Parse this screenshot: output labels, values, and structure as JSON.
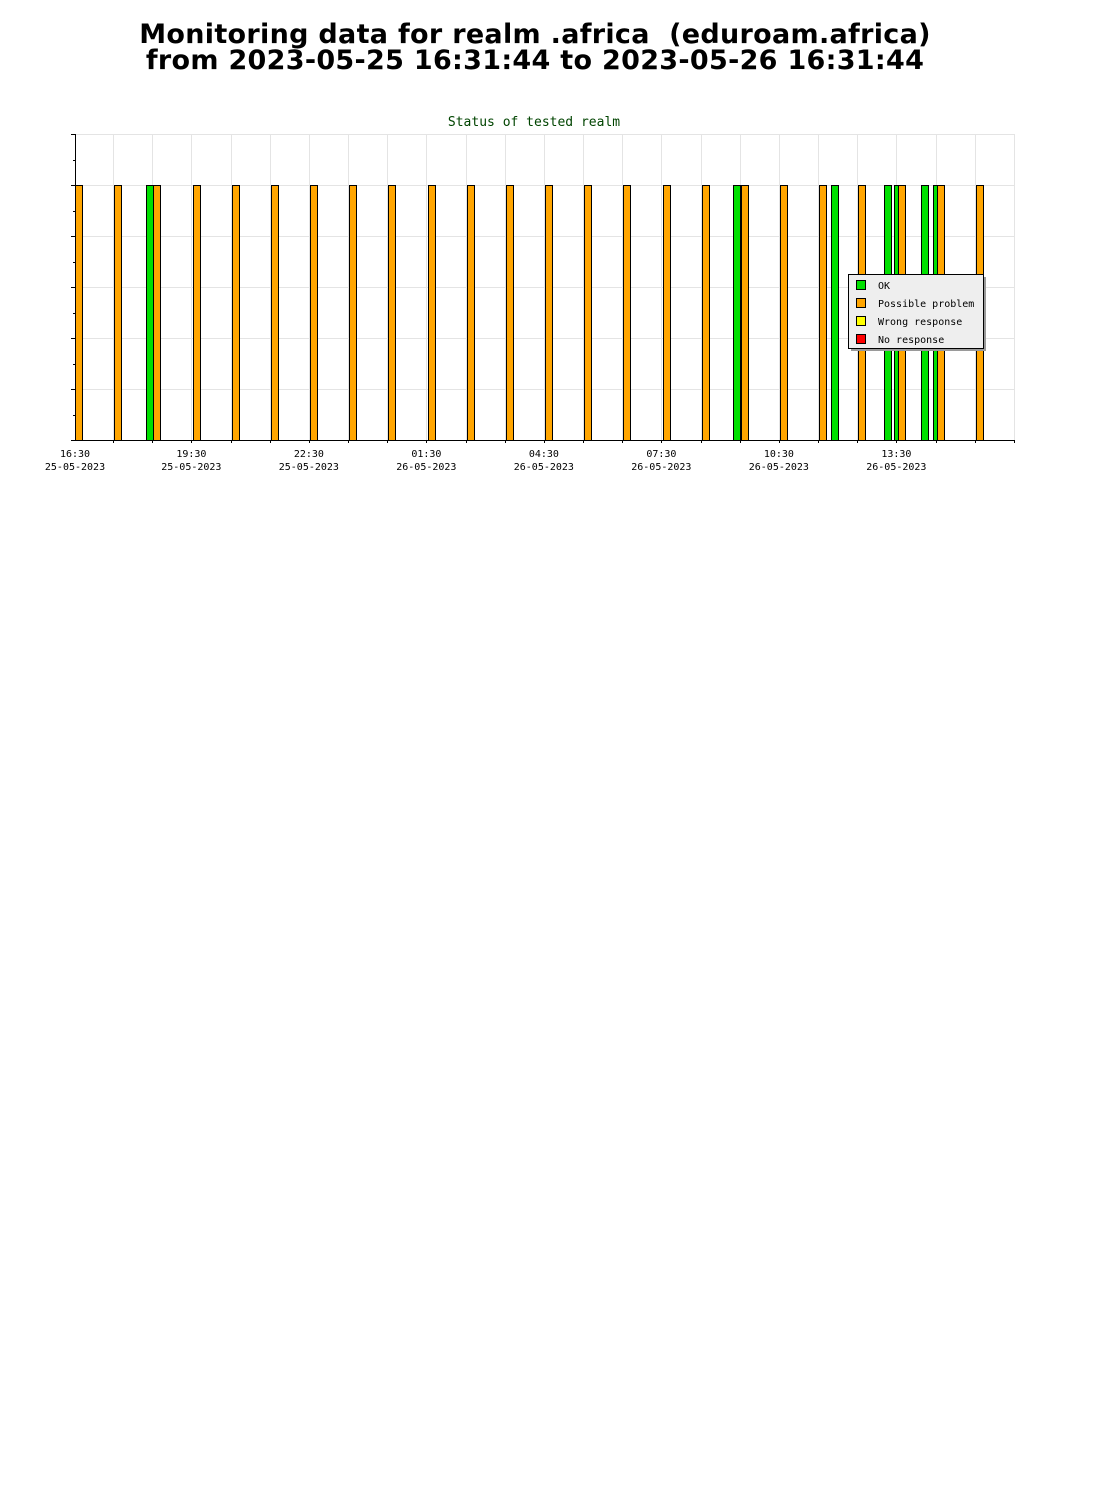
{
  "header": {
    "line1": "Monitoring data for realm .africa  (eduroam.africa)",
    "line2": "from 2023-05-25 16:31:44 to 2023-05-26 16:31:44"
  },
  "chart_data": {
    "type": "bar",
    "title": "Status of tested realm",
    "xlabel": "",
    "ylabel": "",
    "x_range": [
      "2023-05-25 16:31:44",
      "2023-05-26 16:31:44"
    ],
    "x_ticks": [
      {
        "time": "16:30",
        "date": "25-05-2023"
      },
      {
        "time": "19:30",
        "date": "25-05-2023"
      },
      {
        "time": "22:30",
        "date": "25-05-2023"
      },
      {
        "time": "01:30",
        "date": "26-05-2023"
      },
      {
        "time": "04:30",
        "date": "26-05-2023"
      },
      {
        "time": "07:30",
        "date": "26-05-2023"
      },
      {
        "time": "10:30",
        "date": "26-05-2023"
      },
      {
        "time": "13:30",
        "date": "26-05-2023"
      }
    ],
    "ylim": [
      0,
      1.2
    ],
    "grid": true,
    "legend_position": "right",
    "series": [
      {
        "name": "OK",
        "color": "#00e000"
      },
      {
        "name": "Possible problem",
        "color": "#ffa500"
      },
      {
        "name": "Wrong response",
        "color": "#ffff00"
      },
      {
        "name": "No response",
        "color": "#ff0000"
      }
    ],
    "points": [
      {
        "time": "2023-05-25 16:31",
        "status": "Possible problem",
        "value": 1
      },
      {
        "time": "2023-05-25 17:31",
        "status": "Possible problem",
        "value": 1
      },
      {
        "time": "2023-05-25 18:19",
        "status": "OK",
        "value": 1
      },
      {
        "time": "2023-05-25 18:31",
        "status": "Possible problem",
        "value": 1
      },
      {
        "time": "2023-05-25 19:31",
        "status": "Possible problem",
        "value": 1
      },
      {
        "time": "2023-05-25 20:31",
        "status": "Possible problem",
        "value": 1
      },
      {
        "time": "2023-05-25 21:31",
        "status": "Possible problem",
        "value": 1
      },
      {
        "time": "2023-05-25 22:31",
        "status": "Possible problem",
        "value": 1
      },
      {
        "time": "2023-05-25 23:31",
        "status": "Possible problem",
        "value": 1
      },
      {
        "time": "2023-05-26 00:31",
        "status": "Possible problem",
        "value": 1
      },
      {
        "time": "2023-05-26 01:31",
        "status": "Possible problem",
        "value": 1
      },
      {
        "time": "2023-05-26 02:31",
        "status": "Possible problem",
        "value": 1
      },
      {
        "time": "2023-05-26 03:31",
        "status": "Possible problem",
        "value": 1
      },
      {
        "time": "2023-05-26 04:31",
        "status": "Possible problem",
        "value": 1
      },
      {
        "time": "2023-05-26 05:31",
        "status": "Possible problem",
        "value": 1
      },
      {
        "time": "2023-05-26 06:31",
        "status": "Possible problem",
        "value": 1
      },
      {
        "time": "2023-05-26 07:31",
        "status": "Possible problem",
        "value": 1
      },
      {
        "time": "2023-05-26 08:31",
        "status": "Possible problem",
        "value": 1
      },
      {
        "time": "2023-05-26 09:19",
        "status": "OK",
        "value": 1
      },
      {
        "time": "2023-05-26 09:31",
        "status": "Possible problem",
        "value": 1
      },
      {
        "time": "2023-05-26 10:31",
        "status": "Possible problem",
        "value": 1
      },
      {
        "time": "2023-05-26 11:31",
        "status": "Possible problem",
        "value": 1
      },
      {
        "time": "2023-05-26 11:49",
        "status": "OK",
        "value": 1
      },
      {
        "time": "2023-05-26 12:31",
        "status": "Possible problem",
        "value": 1
      },
      {
        "time": "2023-05-26 13:10",
        "status": "OK",
        "value": 1
      },
      {
        "time": "2023-05-26 13:25",
        "status": "OK",
        "value": 1
      },
      {
        "time": "2023-05-26 13:31",
        "status": "Possible problem",
        "value": 1
      },
      {
        "time": "2023-05-26 14:07",
        "status": "OK",
        "value": 1
      },
      {
        "time": "2023-05-26 14:25",
        "status": "OK",
        "value": 1
      },
      {
        "time": "2023-05-26 14:31",
        "status": "Possible problem",
        "value": 1
      },
      {
        "time": "2023-05-26 15:31",
        "status": "Possible problem",
        "value": 1
      }
    ]
  }
}
